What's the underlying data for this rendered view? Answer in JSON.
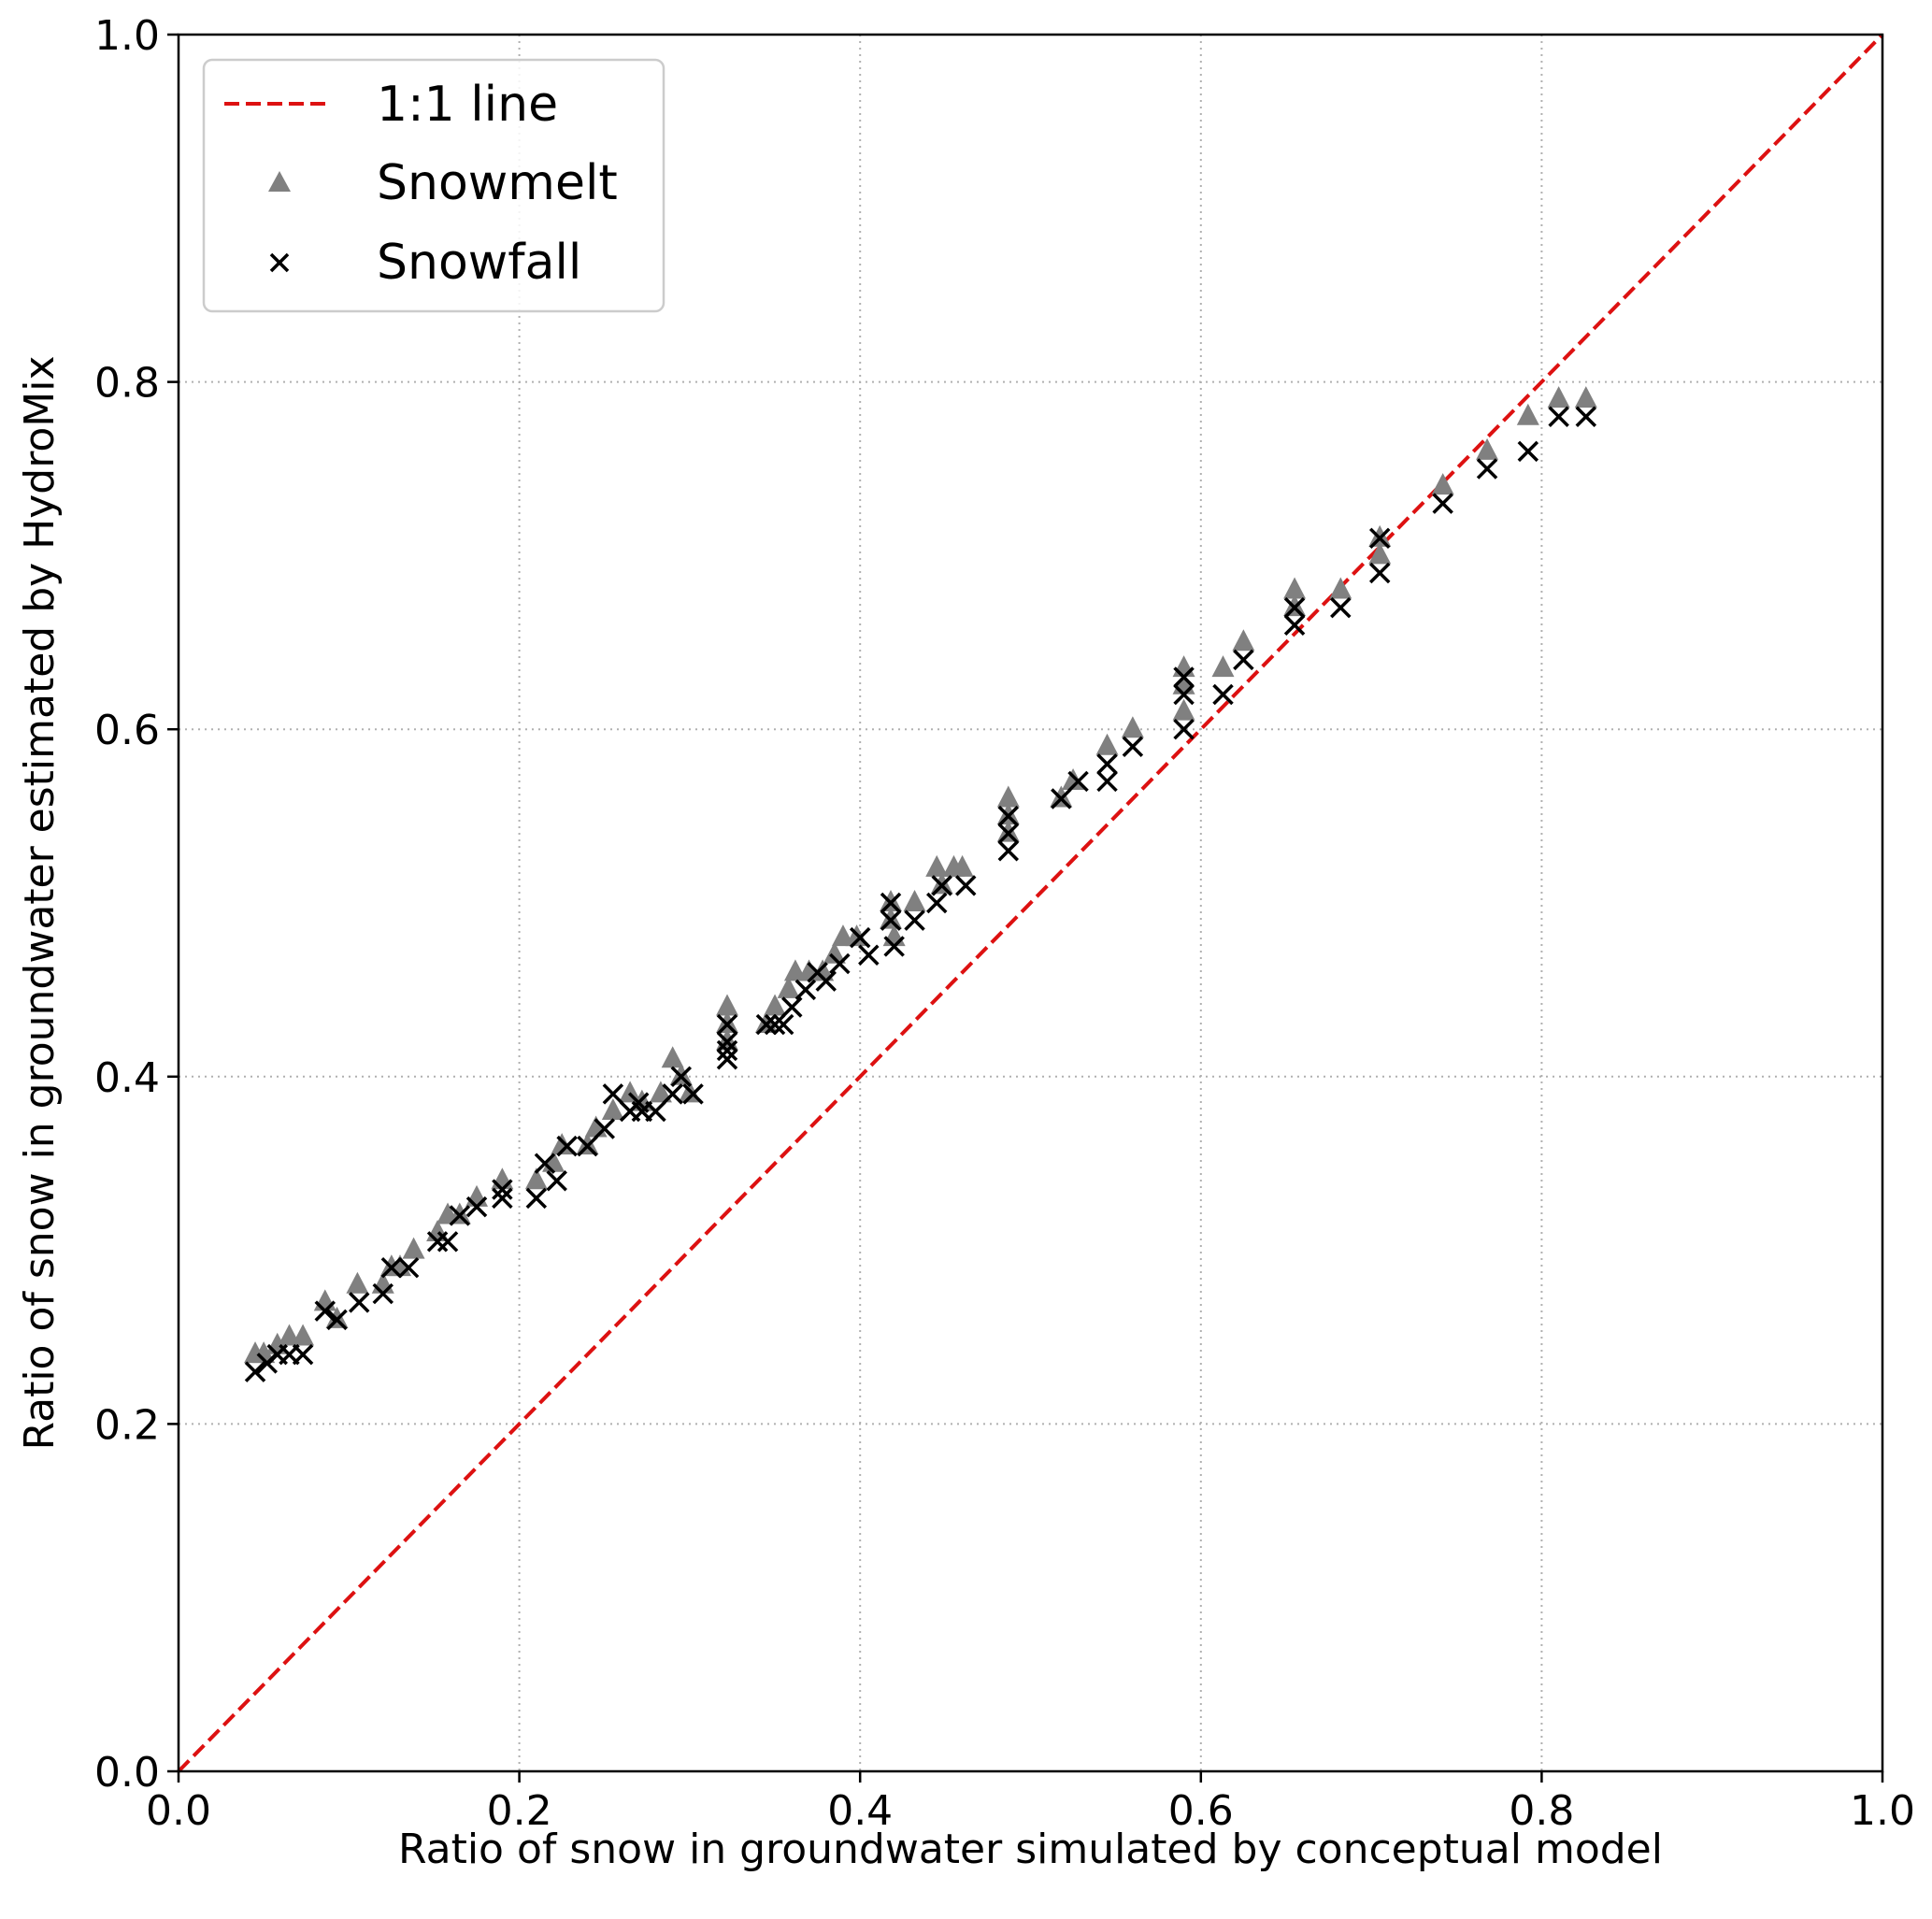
{
  "chart_data": {
    "type": "scatter",
    "title": "",
    "xlabel": "Ratio of snow in groundwater simulated by conceptual model",
    "ylabel": "Ratio of snow in groundwater estimated by HydroMix",
    "xlim": [
      0.0,
      1.0
    ],
    "ylim": [
      0.0,
      1.0
    ],
    "x_ticks": [
      "0.0",
      "0.2",
      "0.4",
      "0.6",
      "0.8",
      "1.0"
    ],
    "y_ticks": [
      "0.0",
      "0.2",
      "0.4",
      "0.6",
      "0.8",
      "1.0"
    ],
    "grid": "dotted",
    "legend_position": "top-left",
    "reference_line": {
      "name": "1:1 line",
      "x": [
        0.0,
        1.0
      ],
      "y": [
        0.0,
        1.0
      ],
      "color": "#dd1111",
      "style": "dashed"
    },
    "series": [
      {
        "name": "Snowmelt",
        "marker": "triangle",
        "color": "#808080",
        "points": [
          [
            0.045,
            0.24
          ],
          [
            0.05,
            0.24
          ],
          [
            0.058,
            0.245
          ],
          [
            0.065,
            0.25
          ],
          [
            0.073,
            0.25
          ],
          [
            0.086,
            0.27
          ],
          [
            0.093,
            0.26
          ],
          [
            0.105,
            0.28
          ],
          [
            0.12,
            0.28
          ],
          [
            0.125,
            0.29
          ],
          [
            0.13,
            0.29
          ],
          [
            0.138,
            0.3
          ],
          [
            0.152,
            0.31
          ],
          [
            0.158,
            0.32
          ],
          [
            0.165,
            0.32
          ],
          [
            0.175,
            0.33
          ],
          [
            0.19,
            0.34
          ],
          [
            0.21,
            0.34
          ],
          [
            0.22,
            0.35
          ],
          [
            0.225,
            0.36
          ],
          [
            0.24,
            0.36
          ],
          [
            0.245,
            0.37
          ],
          [
            0.255,
            0.38
          ],
          [
            0.265,
            0.39
          ],
          [
            0.272,
            0.385
          ],
          [
            0.283,
            0.39
          ],
          [
            0.29,
            0.41
          ],
          [
            0.295,
            0.4
          ],
          [
            0.3,
            0.39
          ],
          [
            0.322,
            0.44
          ],
          [
            0.322,
            0.43
          ],
          [
            0.322,
            0.42
          ],
          [
            0.345,
            0.43
          ],
          [
            0.35,
            0.44
          ],
          [
            0.358,
            0.45
          ],
          [
            0.362,
            0.46
          ],
          [
            0.37,
            0.46
          ],
          [
            0.378,
            0.46
          ],
          [
            0.385,
            0.47
          ],
          [
            0.39,
            0.48
          ],
          [
            0.398,
            0.48
          ],
          [
            0.418,
            0.5
          ],
          [
            0.418,
            0.49
          ],
          [
            0.42,
            0.48
          ],
          [
            0.432,
            0.5
          ],
          [
            0.445,
            0.52
          ],
          [
            0.448,
            0.51
          ],
          [
            0.455,
            0.52
          ],
          [
            0.46,
            0.52
          ],
          [
            0.487,
            0.56
          ],
          [
            0.487,
            0.55
          ],
          [
            0.487,
            0.54
          ],
          [
            0.518,
            0.56
          ],
          [
            0.525,
            0.57
          ],
          [
            0.545,
            0.59
          ],
          [
            0.56,
            0.6
          ],
          [
            0.59,
            0.635
          ],
          [
            0.59,
            0.625
          ],
          [
            0.59,
            0.61
          ],
          [
            0.613,
            0.635
          ],
          [
            0.625,
            0.65
          ],
          [
            0.655,
            0.68
          ],
          [
            0.655,
            0.67
          ],
          [
            0.682,
            0.68
          ],
          [
            0.705,
            0.71
          ],
          [
            0.705,
            0.7
          ],
          [
            0.742,
            0.74
          ],
          [
            0.768,
            0.76
          ],
          [
            0.792,
            0.78
          ],
          [
            0.81,
            0.79
          ],
          [
            0.826,
            0.79
          ]
        ]
      },
      {
        "name": "Snowfall",
        "marker": "cross",
        "color": "#000000",
        "points": [
          [
            0.045,
            0.23
          ],
          [
            0.052,
            0.235
          ],
          [
            0.058,
            0.24
          ],
          [
            0.065,
            0.24
          ],
          [
            0.073,
            0.24
          ],
          [
            0.086,
            0.265
          ],
          [
            0.093,
            0.26
          ],
          [
            0.106,
            0.27
          ],
          [
            0.12,
            0.275
          ],
          [
            0.125,
            0.29
          ],
          [
            0.135,
            0.29
          ],
          [
            0.152,
            0.305
          ],
          [
            0.158,
            0.305
          ],
          [
            0.165,
            0.32
          ],
          [
            0.175,
            0.325
          ],
          [
            0.19,
            0.335
          ],
          [
            0.19,
            0.33
          ],
          [
            0.21,
            0.33
          ],
          [
            0.215,
            0.35
          ],
          [
            0.222,
            0.34
          ],
          [
            0.228,
            0.36
          ],
          [
            0.24,
            0.36
          ],
          [
            0.25,
            0.37
          ],
          [
            0.255,
            0.39
          ],
          [
            0.265,
            0.38
          ],
          [
            0.27,
            0.385
          ],
          [
            0.272,
            0.38
          ],
          [
            0.28,
            0.38
          ],
          [
            0.29,
            0.39
          ],
          [
            0.295,
            0.4
          ],
          [
            0.302,
            0.39
          ],
          [
            0.322,
            0.43
          ],
          [
            0.322,
            0.42
          ],
          [
            0.322,
            0.415
          ],
          [
            0.322,
            0.41
          ],
          [
            0.345,
            0.43
          ],
          [
            0.35,
            0.43
          ],
          [
            0.355,
            0.43
          ],
          [
            0.36,
            0.44
          ],
          [
            0.368,
            0.45
          ],
          [
            0.375,
            0.46
          ],
          [
            0.38,
            0.455
          ],
          [
            0.388,
            0.465
          ],
          [
            0.4,
            0.48
          ],
          [
            0.405,
            0.47
          ],
          [
            0.418,
            0.5
          ],
          [
            0.418,
            0.49
          ],
          [
            0.42,
            0.475
          ],
          [
            0.432,
            0.49
          ],
          [
            0.445,
            0.5
          ],
          [
            0.448,
            0.51
          ],
          [
            0.462,
            0.51
          ],
          [
            0.487,
            0.55
          ],
          [
            0.487,
            0.54
          ],
          [
            0.487,
            0.53
          ],
          [
            0.518,
            0.56
          ],
          [
            0.528,
            0.57
          ],
          [
            0.545,
            0.57
          ],
          [
            0.545,
            0.58
          ],
          [
            0.56,
            0.59
          ],
          [
            0.59,
            0.63
          ],
          [
            0.59,
            0.62
          ],
          [
            0.59,
            0.6
          ],
          [
            0.613,
            0.62
          ],
          [
            0.625,
            0.64
          ],
          [
            0.655,
            0.67
          ],
          [
            0.655,
            0.66
          ],
          [
            0.682,
            0.67
          ],
          [
            0.705,
            0.71
          ],
          [
            0.705,
            0.69
          ],
          [
            0.742,
            0.73
          ],
          [
            0.768,
            0.75
          ],
          [
            0.792,
            0.76
          ],
          [
            0.81,
            0.78
          ],
          [
            0.826,
            0.78
          ]
        ]
      }
    ]
  }
}
